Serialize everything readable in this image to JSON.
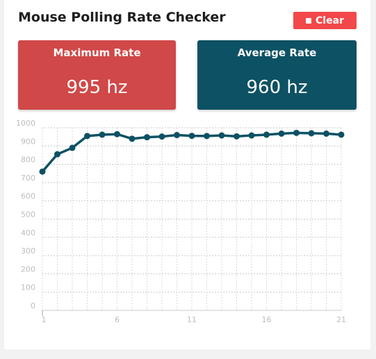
{
  "header": {
    "title": "Mouse Polling Rate Checker",
    "clear_label": "Clear"
  },
  "stats": {
    "max_label": "Maximum Rate",
    "max_value": "995 hz",
    "avg_label": "Average Rate",
    "avg_value": "960 hz"
  },
  "colors": {
    "clear_button": "#f24849",
    "max_card": "#d04848",
    "avg_card": "#0d5164",
    "line": "#0d5164"
  },
  "chart_data": {
    "type": "line",
    "x": [
      1,
      2,
      3,
      4,
      5,
      6,
      7,
      8,
      9,
      10,
      11,
      12,
      13,
      14,
      15,
      16,
      17,
      18,
      19,
      20,
      21
    ],
    "series": [
      {
        "values": [
          760,
          855,
          890,
          955,
          962,
          965,
          940,
          948,
          952,
          960,
          956,
          955,
          958,
          953,
          958,
          962,
          968,
          972,
          970,
          968,
          962
        ]
      }
    ],
    "ylim": [
      0,
      1000
    ],
    "y_ticks": [
      0,
      100,
      200,
      300,
      400,
      500,
      600,
      700,
      800,
      900,
      1000
    ],
    "x_ticks": [
      1,
      6,
      11,
      16,
      21
    ],
    "grid": true
  }
}
